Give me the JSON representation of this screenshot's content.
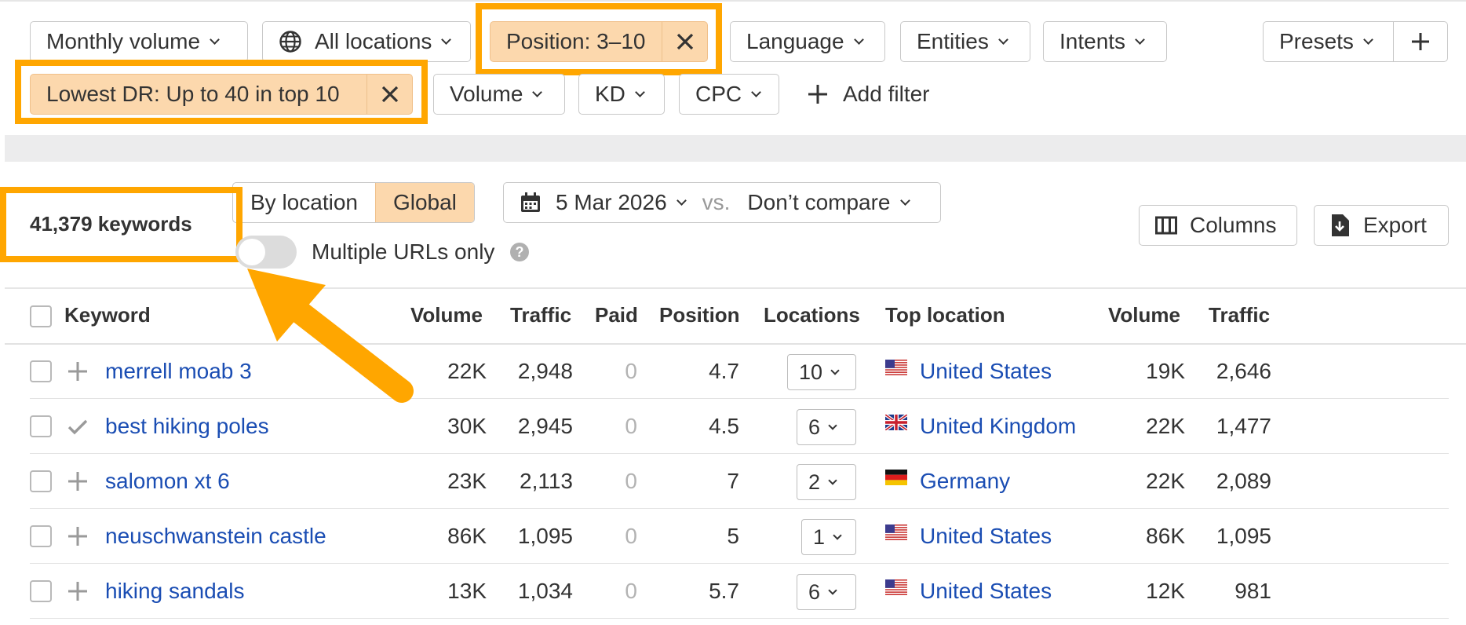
{
  "filters": {
    "row1": {
      "monthly_volume": "Monthly volume",
      "all_locations": "All locations",
      "position": "Position: 3–10",
      "language": "Language",
      "entities": "Entities",
      "intents": "Intents",
      "presets": "Presets"
    },
    "row2": {
      "lowest_dr": "Lowest DR: Up to 40 in top 10",
      "volume": "Volume",
      "kd": "KD",
      "cpc": "CPC",
      "add_filter": "Add filter"
    }
  },
  "toolbar": {
    "keyword_count": "41,379 keywords",
    "by_location": "By location",
    "global": "Global",
    "date": "5 Mar 2026",
    "vs": "vs.",
    "compare": "Don’t compare",
    "multiple_urls": "Multiple URLs only",
    "columns": "Columns",
    "export": "Export"
  },
  "table": {
    "headers": {
      "keyword": "Keyword",
      "volume": "Volume",
      "traffic": "Traffic",
      "paid": "Paid",
      "position": "Position",
      "locations": "Locations",
      "top_location": "Top location",
      "loc_volume": "Volume",
      "loc_traffic": "Traffic"
    },
    "rows": [
      {
        "keyword": "merrell moab 3",
        "volume": "22K",
        "traffic": "2,948",
        "paid": "0",
        "position": "4.7",
        "locations": "10",
        "top_location": "United States",
        "flag": "us-flag",
        "loc_volume": "19K",
        "loc_traffic": "2,646",
        "action": "plus"
      },
      {
        "keyword": "best hiking poles",
        "volume": "30K",
        "traffic": "2,945",
        "paid": "0",
        "position": "4.5",
        "locations": "6",
        "top_location": "United Kingdom",
        "flag": "uk-flag",
        "loc_volume": "22K",
        "loc_traffic": "1,477",
        "action": "check"
      },
      {
        "keyword": "salomon xt 6",
        "volume": "23K",
        "traffic": "2,113",
        "paid": "0",
        "position": "7",
        "locations": "2",
        "top_location": "Germany",
        "flag": "de-flag",
        "loc_volume": "22K",
        "loc_traffic": "2,089",
        "action": "plus"
      },
      {
        "keyword": "neuschwanstein castle",
        "volume": "86K",
        "traffic": "1,095",
        "paid": "0",
        "position": "5",
        "locations": "1",
        "top_location": "United States",
        "flag": "us-flag",
        "loc_volume": "86K",
        "loc_traffic": "1,095",
        "action": "plus"
      },
      {
        "keyword": "hiking sandals",
        "volume": "13K",
        "traffic": "1,034",
        "paid": "0",
        "position": "5.7",
        "locations": "6",
        "top_location": "United States",
        "flag": "us-flag",
        "loc_volume": "12K",
        "loc_traffic": "981",
        "action": "plus"
      }
    ]
  },
  "colors": {
    "accent_orange": "#ffa600",
    "active_filter_bg": "#fcd8ad",
    "link_blue": "#1a4db3"
  }
}
